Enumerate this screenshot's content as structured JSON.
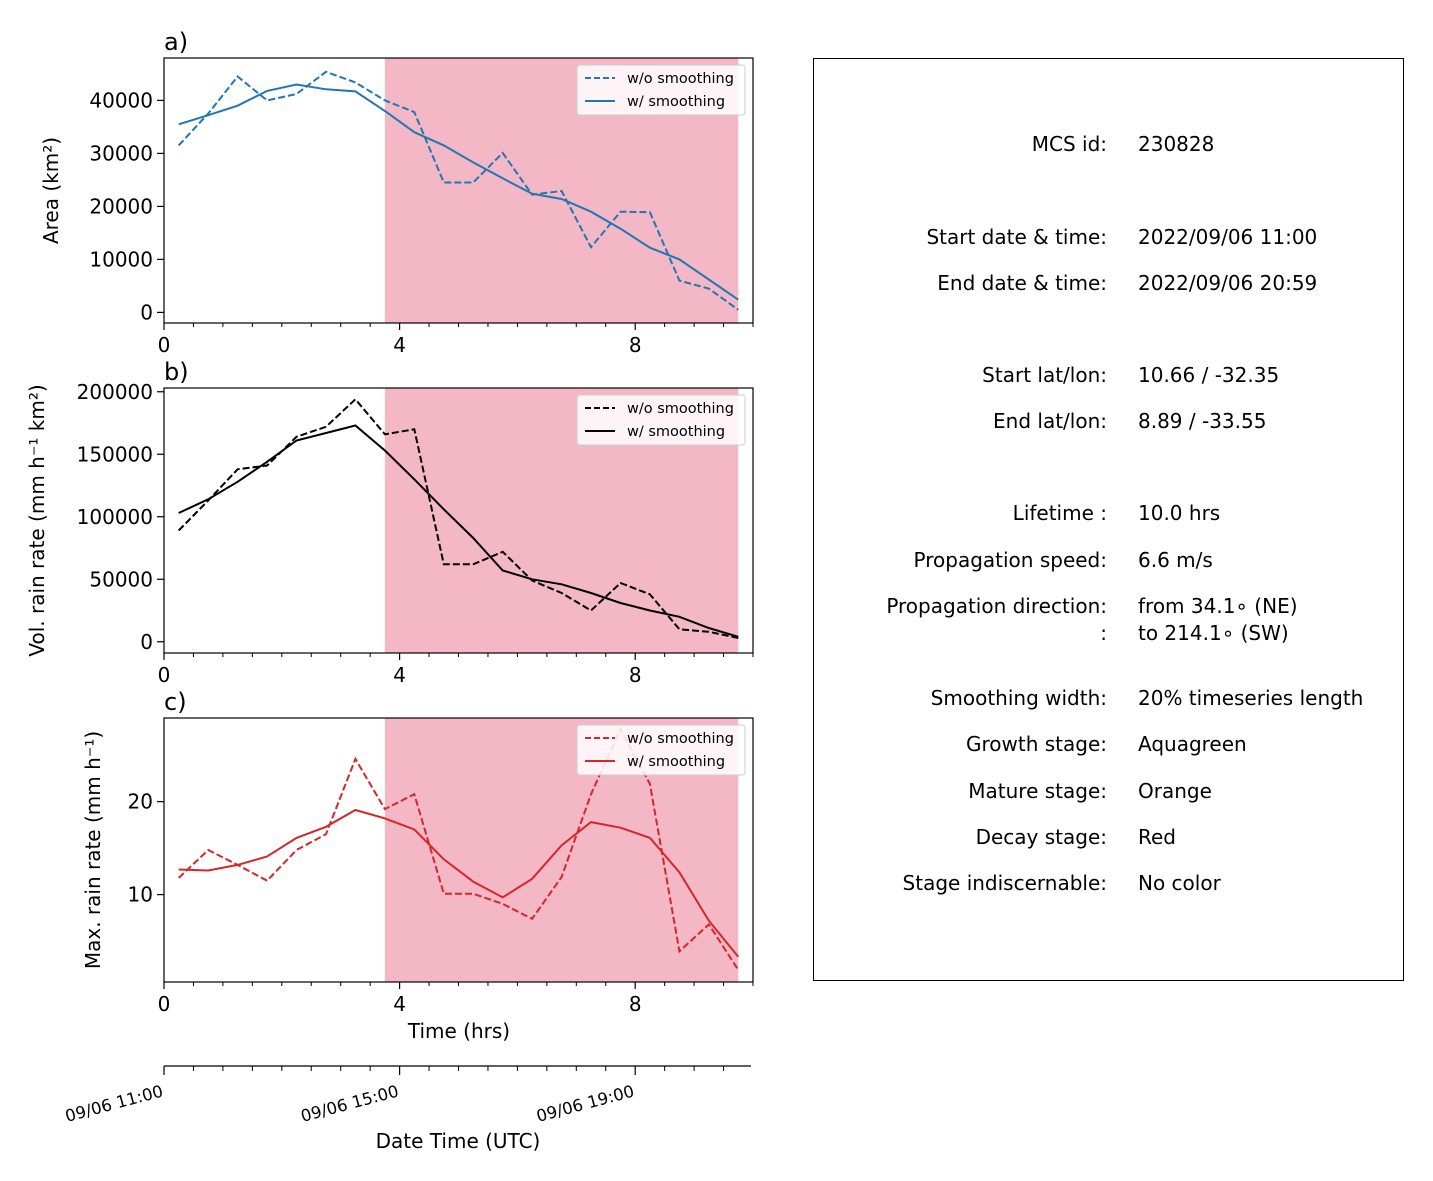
{
  "chart_data": [
    {
      "type": "line",
      "panel_label": "a)",
      "ylabel": "Area  (km²)",
      "xlim": [
        0,
        10
      ],
      "ylim": [
        -2000,
        48000
      ],
      "xticks": [
        0,
        4,
        8
      ],
      "yticks": [
        0,
        10000,
        20000,
        30000,
        40000
      ],
      "shaded_x_range": [
        3.75,
        9.75
      ],
      "legend_position": "upper right",
      "color": "#1f77b4",
      "x": [
        0.25,
        0.75,
        1.25,
        1.75,
        2.25,
        2.75,
        3.25,
        3.75,
        4.25,
        4.75,
        5.25,
        5.75,
        6.25,
        6.75,
        7.25,
        7.75,
        8.25,
        8.75,
        9.25,
        9.75
      ],
      "series": [
        {
          "name": "w/o smoothing",
          "style": "dashed",
          "values": [
            31500,
            37500,
            44500,
            40000,
            41200,
            45400,
            43400,
            40000,
            37800,
            24500,
            24500,
            30100,
            22200,
            22900,
            12300,
            19000,
            18900,
            6000,
            4500,
            500
          ]
        },
        {
          "name": "w/ smoothing",
          "style": "solid",
          "values": [
            35500,
            37200,
            39000,
            41800,
            43000,
            42100,
            41700,
            38000,
            34000,
            31500,
            28300,
            25300,
            22400,
            21400,
            19000,
            15800,
            12200,
            10000,
            6200,
            2400
          ]
        }
      ]
    },
    {
      "type": "line",
      "panel_label": "b)",
      "ylabel": "Vol. rain rate (mm h⁻¹ km²)",
      "xlim": [
        0,
        10
      ],
      "ylim": [
        -9000,
        203000
      ],
      "xticks": [
        0,
        4,
        8
      ],
      "yticks": [
        0,
        50000,
        100000,
        150000,
        200000
      ],
      "shaded_x_range": [
        3.75,
        9.75
      ],
      "legend_position": "upper right",
      "color": "#000000",
      "x": [
        0.25,
        0.75,
        1.25,
        1.75,
        2.25,
        2.75,
        3.25,
        3.75,
        4.25,
        4.75,
        5.25,
        5.75,
        6.25,
        6.75,
        7.25,
        7.75,
        8.25,
        8.75,
        9.25,
        9.75
      ],
      "series": [
        {
          "name": "w/o smoothing",
          "style": "dashed",
          "values": [
            89000,
            113000,
            138000,
            141000,
            164000,
            172000,
            194000,
            166000,
            170000,
            62000,
            62000,
            72000,
            49000,
            39000,
            25000,
            47000,
            38000,
            10000,
            8000,
            3000
          ]
        },
        {
          "name": "w/ smoothing",
          "style": "solid",
          "values": [
            103000,
            114000,
            128000,
            144000,
            161000,
            167000,
            173000,
            153000,
            130000,
            106000,
            83000,
            57000,
            50000,
            46000,
            39000,
            31000,
            25000,
            20000,
            11000,
            4000
          ]
        }
      ]
    },
    {
      "type": "line",
      "panel_label": "c)",
      "ylabel": "Max. rain rate  (mm h⁻¹)",
      "xlabel": "Time (hrs)",
      "xlim": [
        0,
        10
      ],
      "ylim": [
        0.6,
        29
      ],
      "xticks": [
        0,
        4,
        8
      ],
      "yticks": [
        10,
        20
      ],
      "shaded_x_range": [
        3.75,
        9.75
      ],
      "legend_position": "upper right",
      "color": "#d62728",
      "x": [
        0.25,
        0.75,
        1.25,
        1.75,
        2.25,
        2.75,
        3.25,
        3.75,
        4.25,
        4.75,
        5.25,
        5.75,
        6.25,
        6.75,
        7.25,
        7.75,
        8.25,
        8.75,
        9.25,
        9.75
      ],
      "series": [
        {
          "name": "w/o smoothing",
          "style": "dashed",
          "values": [
            11.8,
            14.8,
            13.2,
            11.5,
            14.8,
            16.5,
            24.6,
            19.2,
            20.8,
            10.1,
            10.1,
            9.0,
            7.4,
            11.9,
            20.8,
            27.8,
            21.9,
            3.9,
            6.8,
            1.9
          ]
        },
        {
          "name": "w/ smoothing",
          "style": "solid",
          "values": [
            12.7,
            12.6,
            13.2,
            14.1,
            16.1,
            17.3,
            19.1,
            18.2,
            17.0,
            13.8,
            11.4,
            9.7,
            11.7,
            15.3,
            17.8,
            17.2,
            16.1,
            12.4,
            7.2,
            3.3
          ]
        }
      ]
    }
  ],
  "date_axis": {
    "xlabel": "Date Time (UTC)",
    "ticks": [
      {
        "t": 0,
        "label": "09/06 11:00"
      },
      {
        "t": 4,
        "label": "09/06 15:00"
      },
      {
        "t": 8,
        "label": "09/06 19:00"
      }
    ],
    "minor_ticks": [
      0.5,
      1,
      1.5,
      2,
      2.5,
      3,
      3.5,
      4.5,
      5,
      5.5,
      6,
      6.5,
      7,
      7.5,
      8.5,
      9,
      9.5
    ]
  },
  "info": {
    "rows": [
      {
        "key": "MCS id:",
        "value": "230828"
      },
      {
        "key": "Start date & time:",
        "value": "2022/09/06 11:00"
      },
      {
        "key": "End date & time:",
        "value": "2022/09/06 20:59"
      },
      {
        "key": "Start lat/lon:",
        "value": "10.66 / -32.35"
      },
      {
        "key": "End lat/lon:",
        "value": "8.89 / -33.55"
      },
      {
        "key": "Lifetime :",
        "value": "10.0 hrs"
      },
      {
        "key": "Propagation speed:",
        "value": "6.6 m/s"
      },
      {
        "key": "Propagation direction:",
        "value": "from  34.1∘ (NE)"
      },
      {
        "key": ":",
        "value": "to   214.1∘ (SW)"
      },
      {
        "key": "Smoothing width:",
        "value": "20% timeseries length"
      },
      {
        "key": "Growth stage:",
        "value": "Aquagreen"
      },
      {
        "key": "Mature stage:",
        "value": "Orange"
      },
      {
        "key": "Decay stage:",
        "value": "Red"
      },
      {
        "key": "Stage indiscernable:",
        "value": "No color"
      }
    ]
  },
  "colors": {
    "decay_shade": "#f4b7c5",
    "area_line": "#1f77b4",
    "volrain_line": "#000000",
    "maxrain_line": "#d62728"
  }
}
